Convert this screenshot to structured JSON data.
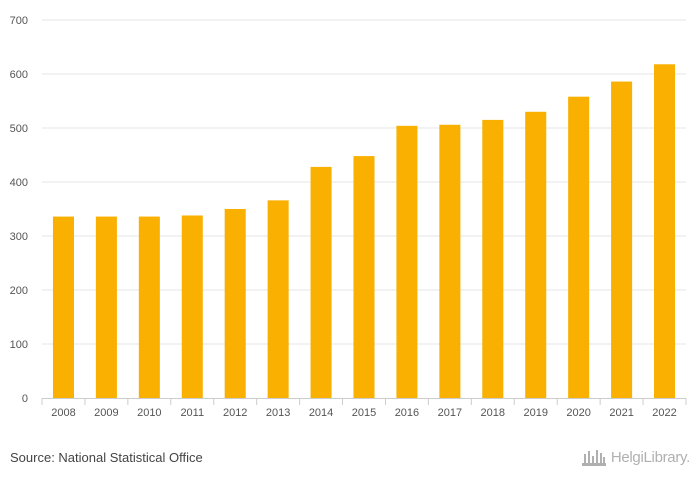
{
  "chart_data": {
    "type": "bar",
    "categories": [
      "2008",
      "2009",
      "2010",
      "2011",
      "2012",
      "2013",
      "2014",
      "2015",
      "2016",
      "2017",
      "2018",
      "2019",
      "2020",
      "2021",
      "2022"
    ],
    "values": [
      336,
      336,
      336,
      338,
      350,
      366,
      428,
      448,
      504,
      506,
      515,
      530,
      558,
      586,
      618
    ],
    "ylim": [
      0,
      700
    ],
    "yticks": [
      0,
      100,
      200,
      300,
      400,
      500,
      600,
      700
    ],
    "title": "",
    "xlabel": "",
    "ylabel": "",
    "grid": true,
    "colors": {
      "bar": "#f9b000",
      "grid": "#e6e6e6",
      "axis": "#cccccc"
    }
  },
  "footer": {
    "source": "Source: National Statistical Office",
    "brand": "HelgiLibrary."
  }
}
